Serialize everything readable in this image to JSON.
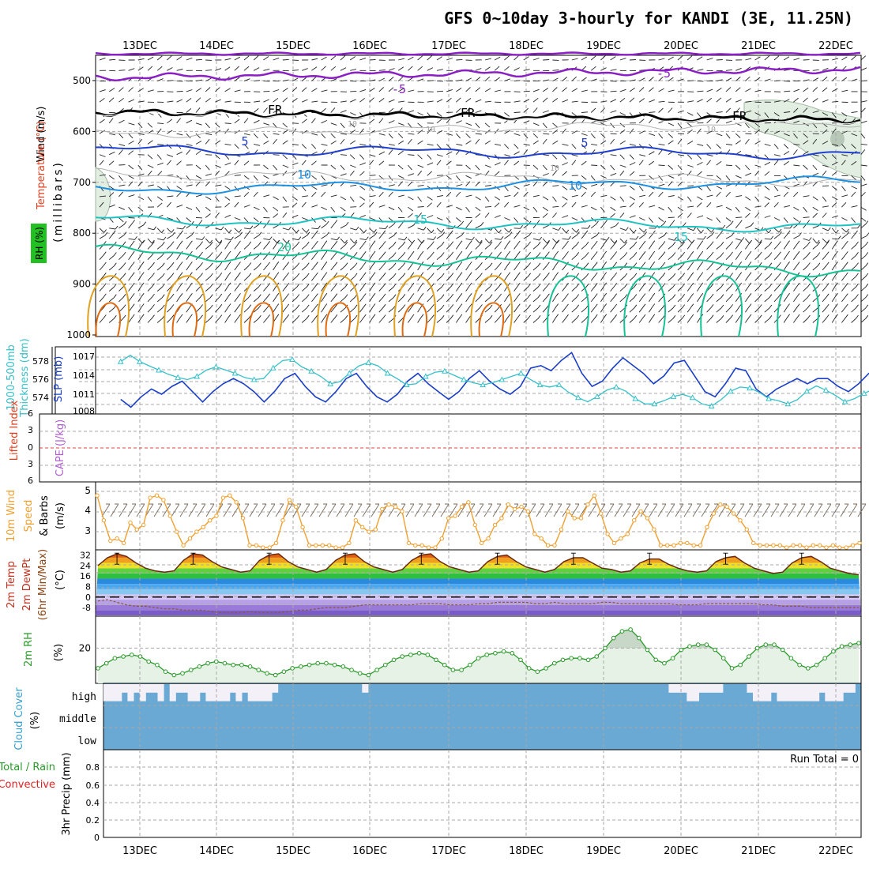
{
  "title": "GFS 0~10day 3-hourly for KANDI (3E, 11.25N)",
  "dates": [
    "13DEC",
    "14DEC",
    "15DEC",
    "16DEC",
    "17DEC",
    "18DEC",
    "19DEC",
    "20DEC",
    "21DEC",
    "22DEC"
  ],
  "colors": {
    "grid": "#a8a8a8",
    "purple": "#8a1fc4",
    "blue_dark": "#1f3fcf",
    "blue_mid": "#1e90e0",
    "cyan": "#1ec2c2",
    "teal": "#14c296",
    "gold": "#e0a020",
    "orange": "#e06a10",
    "slp": "#1a3ec8",
    "thick": "#36c0c8",
    "wind": "#f0a030",
    "rh": "#2a9a2a",
    "rh_fill": "#e6f2e6",
    "cloud": "#6aa9d4",
    "lowcloud_white": "#f4f0f8"
  },
  "panels": {
    "upper": {
      "labels": {
        "wind": "Wind (m/s)",
        "temp": "Temperature (°C)",
        "rh": "RH (%)",
        "units": "(millibars)"
      },
      "yticks": [
        "500",
        "600",
        "700",
        "800",
        "900",
        "1000"
      ],
      "contour_labels": [
        "-5",
        "-5",
        "FR",
        "FR",
        "FR",
        "5",
        "5",
        "10",
        "10",
        "15",
        "15",
        "20",
        "10",
        "10",
        "10",
        "10"
      ]
    },
    "slp": {
      "labels": {
        "left1": "1000-500mb",
        "left2": "Thickness (dm)",
        "right": "SLP (mb)"
      },
      "left_ticks": [
        "578",
        "576",
        "574"
      ],
      "right_ticks": [
        "1017",
        "1014",
        "1011",
        "1008"
      ]
    },
    "cape": {
      "labels": {
        "left": "Lifted Index",
        "right": "CAPE (J/kg)"
      },
      "yticks": [
        "6",
        "3",
        "0",
        "3",
        "6"
      ]
    },
    "wind10": {
      "labels": {
        "a": "10m Wind",
        "b": "Speed",
        "c": "& Barbs",
        "units": "(m/s)"
      },
      "yticks": [
        "5",
        "4",
        "3"
      ]
    },
    "temp": {
      "labels": {
        "a": "2m Temp",
        "b": "2m DewPt",
        "c": "(6hr Min/Max)",
        "units": "(°C)"
      },
      "yticks": [
        "32",
        "24",
        "16",
        "8",
        "0",
        "-8"
      ]
    },
    "rh2m": {
      "labels": {
        "a": "2m RH",
        "units": "(%)"
      },
      "yticks": [
        "20"
      ]
    },
    "cloud": {
      "labels": {
        "a": "Cloud Cover",
        "units": "(%)"
      },
      "levels": [
        "high",
        "middle",
        "low"
      ]
    },
    "precip": {
      "labels": {
        "a": "Total / Rain",
        "b": "Convective",
        "c": "3hr Precip (mm)"
      },
      "yticks": [
        "0.8",
        "0.6",
        "0.4",
        "0.2",
        "0"
      ],
      "run_total": "Run Total = 0"
    }
  },
  "chart_data": [
    {
      "type": "line",
      "title": "1000-500mb Thickness (dm) / SLP (mb)",
      "x_start": "12DEC 12Z",
      "step_hours": 3,
      "series": [
        {
          "name": "SLP (mb)",
          "ylim": [
            1007,
            1019
          ],
          "values": [
            1009.5,
            1008,
            1010,
            1011.5,
            1010.5,
            1012,
            1013,
            1011,
            1009,
            1011,
            1012.5,
            1013.5,
            1012.5,
            1011,
            1009,
            1011,
            1013.5,
            1014.5,
            1012,
            1010,
            1009,
            1011,
            1013.5,
            1014.5,
            1012,
            1010,
            1009,
            1010.5,
            1013,
            1014.5,
            1012.5,
            1011,
            1009.5,
            1011,
            1013.5,
            1015,
            1013,
            1011.5,
            1010.5,
            1012,
            1015.5,
            1016,
            1015,
            1017,
            1018.5,
            1014.5,
            1012,
            1013,
            1015.5,
            1017.5,
            1016,
            1014.5,
            1012.5,
            1014,
            1016.5,
            1017,
            1014,
            1011,
            1010,
            1012.5,
            1015.5,
            1015,
            1011.5,
            1010,
            1011.5,
            1012.5,
            1013.5,
            1012.5,
            1013.5,
            1013.5,
            1012,
            1011,
            1012.5,
            1014.5,
            1014
          ]
        },
        {
          "name": "1000-500mb Thickness (dm)",
          "ylim": [
            573.2,
            579.1
          ],
          "values": [
            578,
            578.6,
            578,
            577.6,
            577.2,
            576.8,
            576.5,
            576.3,
            576.6,
            577.2,
            577.5,
            577.2,
            576.9,
            576.5,
            576.3,
            576.4,
            577.4,
            578.1,
            578.2,
            577.5,
            577.1,
            576.6,
            575.9,
            576.1,
            576.9,
            577.6,
            577.9,
            577.6,
            576.9,
            576.4,
            575.8,
            575.9,
            576.6,
            577,
            577.1,
            576.7,
            576.3,
            576,
            575.8,
            576,
            576.3,
            576.6,
            576.9,
            576.3,
            575.8,
            575.6,
            575.8,
            575.1,
            574.6,
            574.2,
            574.7,
            575.3,
            575.6,
            575.2,
            574.5,
            574,
            574,
            574.3,
            574.7,
            574.9,
            574.6,
            574,
            573.8,
            574.4,
            575.2,
            575.6,
            575.5,
            575.1,
            574.5,
            574.3,
            574,
            574.4,
            575.2,
            575.7,
            575.3,
            574.8,
            574.2,
            574.5,
            575,
            575.4,
            575.1
          ]
        }
      ]
    },
    {
      "type": "line",
      "title": "10m Wind Speed & Barbs",
      "ylabel": "m/s",
      "ylim": [
        2.4,
        5.4
      ],
      "x_start": "12DEC 12Z",
      "step_hours": 3,
      "values": [
        4.8,
        3.7,
        2.8,
        2.9,
        2.7,
        3.6,
        3.3,
        3.5,
        4.7,
        4.8,
        4.6,
        3.9,
        3.2,
        2.6,
        2.9,
        3.2,
        3.4,
        3.7,
        3.9,
        4.7,
        4.8,
        4.5,
        3.8,
        2.6,
        2.6,
        2.5,
        2.5,
        2.7,
        3.7,
        4.6,
        4.3,
        3.4,
        2.6,
        2.6,
        2.6,
        2.6,
        2.5,
        2.5,
        2.7,
        3.7,
        3.4,
        3.2,
        3.3,
        4.2,
        4.4,
        4.3,
        4.1,
        2.7,
        2.6,
        2.6,
        2.5,
        2.5,
        2.9,
        3.8,
        3.9,
        4.3,
        4.5,
        3.5,
        2.7,
        2.9,
        3.5,
        3.8,
        4.4,
        4.2,
        4.3,
        4.1,
        3.1,
        2.9,
        2.6,
        2.6,
        3.3,
        4.1,
        3.8,
        3.8,
        4.4,
        4.8,
        4.0,
        3.1,
        2.7,
        2.9,
        3.1,
        3.7,
        4.1,
        3.8,
        3.3,
        2.6,
        2.6,
        2.6,
        2.7,
        2.7,
        2.6,
        2.6,
        3.4,
        4.0,
        4.4,
        4.3,
        4.0,
        3.7,
        3.3,
        2.7,
        2.6,
        2.6,
        2.6,
        2.6,
        2.5,
        2.6,
        2.6,
        2.5,
        2.6,
        2.6,
        2.5,
        2.6,
        2.5,
        2.5,
        2.6,
        2.7
      ]
    },
    {
      "type": "area",
      "title": "2m Temp / 2m DewPt (6hr Min/Max)",
      "ylabel": "°C",
      "ylim": [
        -14,
        36
      ],
      "x_start": "12DEC 12Z",
      "step_hours": 3,
      "series": [
        {
          "name": "2m Temp",
          "values": [
            24,
            30,
            33,
            31,
            26,
            22,
            20,
            19,
            20,
            28,
            33,
            32,
            27,
            23,
            21,
            19,
            20,
            28,
            32,
            33,
            27,
            23,
            21,
            19,
            21,
            28,
            32,
            33,
            27,
            23,
            21,
            19,
            21,
            28,
            32,
            33,
            27,
            23,
            21,
            19,
            20,
            27,
            31,
            32,
            27,
            23,
            21,
            19,
            21,
            27,
            30,
            30,
            26,
            22,
            21,
            19,
            20,
            26,
            29,
            29,
            25,
            22,
            20,
            19,
            20,
            27,
            30,
            31,
            26,
            22,
            20,
            18,
            19,
            26,
            30,
            31,
            27,
            22,
            20,
            18,
            17
          ]
        },
        {
          "name": "2m DewPt",
          "values": [
            -3,
            -2,
            -4,
            -6,
            -7,
            -7,
            -8,
            -9,
            -9,
            -10,
            -10,
            -10,
            -11,
            -12,
            -12,
            -12,
            -11,
            -12,
            -12,
            -12,
            -11,
            -10,
            -10,
            -9,
            -8,
            -8,
            -8,
            -7,
            -6,
            -6,
            -6,
            -6,
            -6,
            -6,
            -5,
            -5,
            -5,
            -6,
            -6,
            -6,
            -5,
            -5,
            -4,
            -4,
            -4,
            -4,
            -5,
            -5,
            -4,
            -5,
            -5,
            -5,
            -5,
            -4,
            -4,
            -5,
            -5,
            -5,
            -5,
            -5,
            -5,
            -6,
            -6,
            -6,
            -5,
            -5,
            -5,
            -5,
            -5,
            -5,
            -6,
            -6,
            -7,
            -7,
            -7,
            -8,
            -8,
            -8,
            -8,
            -8,
            -8
          ]
        }
      ]
    },
    {
      "type": "line",
      "title": "2m RH",
      "ylabel": "%",
      "ylim": [
        0,
        38
      ],
      "x_start": "12DEC 12Z",
      "step_hours": 3,
      "values": [
        8,
        11,
        14,
        15,
        16,
        15,
        12,
        10,
        6,
        4,
        5,
        7,
        9,
        11,
        12,
        11,
        10,
        10,
        9,
        7,
        5,
        4,
        6,
        8,
        9,
        10,
        11,
        11,
        10,
        9,
        7,
        5,
        4,
        7,
        10,
        13,
        15,
        16,
        17,
        16,
        13,
        10,
        7,
        7,
        10,
        14,
        16,
        17,
        18,
        17,
        13,
        8,
        6,
        8,
        11,
        13,
        14,
        14,
        13,
        15,
        20,
        26,
        30,
        31,
        26,
        19,
        13,
        11,
        14,
        19,
        21,
        22,
        22,
        19,
        14,
        8,
        10,
        15,
        20,
        22,
        22,
        19,
        14,
        10,
        8,
        10,
        14,
        18,
        21,
        22,
        23
      ]
    },
    {
      "type": "bar",
      "title": "Cloud Cover (%)",
      "series": [
        {
          "name": "high",
          "values": [
            80,
            80,
            80,
            40,
            80,
            40,
            80,
            40,
            40,
            80,
            0,
            80,
            40,
            40,
            80,
            80,
            40,
            80,
            80,
            80,
            80,
            40,
            80,
            40,
            80,
            80,
            80,
            80,
            40,
            0,
            0,
            0,
            0,
            0,
            0,
            0,
            0,
            0,
            0,
            0,
            0,
            0,
            0,
            40,
            0,
            0,
            0,
            0,
            0,
            0,
            0,
            0,
            0,
            0,
            0,
            0,
            0,
            0,
            0,
            0,
            0,
            0,
            0,
            0,
            0,
            0,
            0,
            0,
            0,
            0,
            0,
            0,
            0,
            0,
            0,
            0,
            0,
            0,
            0,
            0,
            0,
            0,
            0,
            0,
            0,
            0,
            0,
            0,
            0,
            0,
            0,
            0,
            0,
            0,
            40,
            40,
            40,
            80,
            80,
            40,
            40,
            40,
            40,
            0,
            0,
            0,
            0,
            40,
            80,
            80,
            80,
            40,
            80,
            80,
            80,
            80,
            80,
            80,
            80,
            40,
            80,
            80,
            80,
            40,
            40,
            0
          ]
        },
        {
          "name": "middle",
          "values": [
            100
          ]
        },
        {
          "name": "low",
          "values": [
            100
          ]
        }
      ]
    },
    {
      "type": "bar",
      "title": "3hr Precip (mm)",
      "ylim": [
        0,
        1
      ],
      "values": [
        0
      ],
      "run_total": "Run Total = 0"
    }
  ]
}
